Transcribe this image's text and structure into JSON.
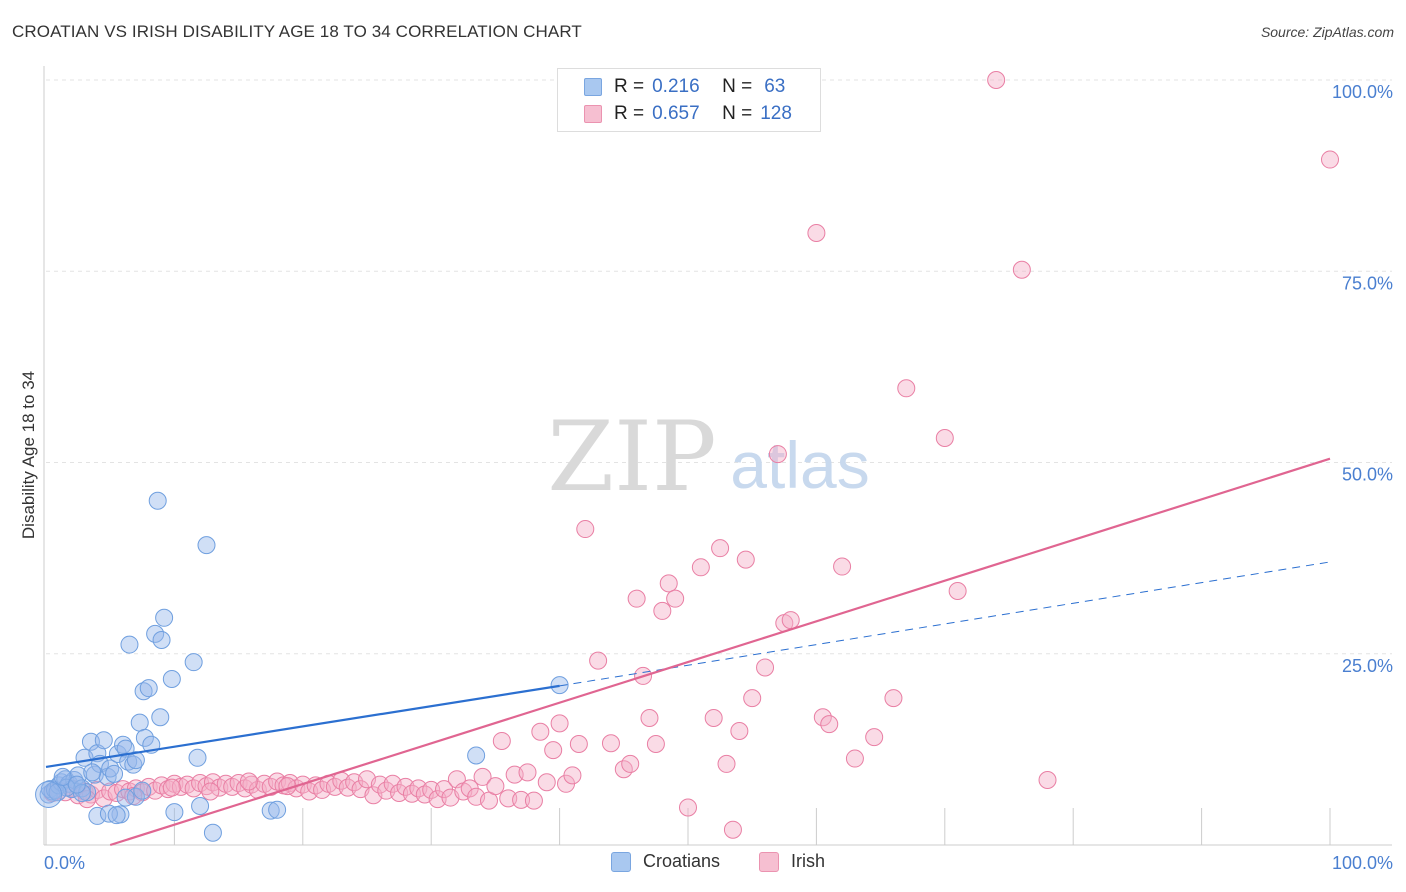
{
  "title": "CROATIAN VS IRISH DISABILITY AGE 18 TO 34 CORRELATION CHART",
  "source": "Source: ZipAtlas.com",
  "watermark": {
    "zip": "ZIP",
    "atlas": "atlas"
  },
  "legend_top": [
    {
      "r_label": "R =",
      "r_value": "0.216",
      "n_label": "N =",
      "n_value": "63",
      "color": "#a9c8f0",
      "border": "#7aa6e0"
    },
    {
      "r_label": "R =",
      "r_value": "0.657",
      "n_label": "N =",
      "n_value": "128",
      "color": "#f6bfd1",
      "border": "#eb93b0"
    }
  ],
  "legend_bottom": [
    {
      "label": "Croatians",
      "color": "#a9c8f0",
      "border": "#7aa6e0"
    },
    {
      "label": "Irish",
      "color": "#f6bfd1",
      "border": "#eb93b0"
    }
  ],
  "chart_data": {
    "type": "scatter",
    "title": "CROATIAN VS IRISH DISABILITY AGE 18 TO 34 CORRELATION CHART",
    "xlabel": "",
    "ylabel": "Disability Age 18 to 34",
    "xlim": [
      0,
      100
    ],
    "ylim": [
      0,
      100
    ],
    "x_tick_labels": [
      {
        "value": 0,
        "label": "0.0%"
      },
      {
        "value": 100,
        "label": "100.0%"
      }
    ],
    "y_tick_labels": [
      {
        "value": 25,
        "label": "25.0%"
      },
      {
        "value": 50,
        "label": "50.0%"
      },
      {
        "value": 75,
        "label": "75.0%"
      },
      {
        "value": 100,
        "label": "100.0%"
      }
    ],
    "grid": true,
    "legend_position": "top-center",
    "series": [
      {
        "name": "Croatians",
        "color": "#6f9fdf",
        "fill": "rgba(150,185,235,0.45)",
        "trend": {
          "x0": 0,
          "y0": 10.2,
          "x1": 40,
          "y1": 20.8,
          "dash_to_x": 100,
          "dash_to_y": 37.0,
          "color": "#2b6fd0"
        },
        "points": [
          [
            0.2,
            6.6
          ],
          [
            0.3,
            7.3
          ],
          [
            0.5,
            7.0
          ],
          [
            0.7,
            7.2
          ],
          [
            1.0,
            7.8
          ],
          [
            1.2,
            8.2
          ],
          [
            1.5,
            8.6
          ],
          [
            1.8,
            8.0
          ],
          [
            2.0,
            7.3
          ],
          [
            2.2,
            8.5
          ],
          [
            2.5,
            9.1
          ],
          [
            2.8,
            7.4
          ],
          [
            3.0,
            11.4
          ],
          [
            3.2,
            6.9
          ],
          [
            3.5,
            13.5
          ],
          [
            3.8,
            9.2
          ],
          [
            4.0,
            12.0
          ],
          [
            4.2,
            10.6
          ],
          [
            4.5,
            13.7
          ],
          [
            4.8,
            8.9
          ],
          [
            5.0,
            10.0
          ],
          [
            5.3,
            9.3
          ],
          [
            5.6,
            11.9
          ],
          [
            6.0,
            13.1
          ],
          [
            6.2,
            12.6
          ],
          [
            6.4,
            10.9
          ],
          [
            6.8,
            10.5
          ],
          [
            7.0,
            11.1
          ],
          [
            7.3,
            16.0
          ],
          [
            7.0,
            6.3
          ],
          [
            6.5,
            26.2
          ],
          [
            7.7,
            14.0
          ],
          [
            7.5,
            7.1
          ],
          [
            8.2,
            13.1
          ],
          [
            7.6,
            20.1
          ],
          [
            8.0,
            20.5
          ],
          [
            8.5,
            27.6
          ],
          [
            8.7,
            45.0
          ],
          [
            8.9,
            16.7
          ],
          [
            9.0,
            26.8
          ],
          [
            9.2,
            29.7
          ],
          [
            9.8,
            21.7
          ],
          [
            11.5,
            23.9
          ],
          [
            11.8,
            11.4
          ],
          [
            12.0,
            5.1
          ],
          [
            12.5,
            39.2
          ],
          [
            13.0,
            1.6
          ],
          [
            17.5,
            4.5
          ],
          [
            18.0,
            4.6
          ],
          [
            40.0,
            20.9
          ],
          [
            33.5,
            11.7
          ],
          [
            4.0,
            3.8
          ],
          [
            5.8,
            4.0
          ],
          [
            6.2,
            6.2
          ],
          [
            10.0,
            4.3
          ],
          [
            2.8,
            6.8
          ],
          [
            1.6,
            7.5
          ],
          [
            0.9,
            6.9
          ],
          [
            1.3,
            8.9
          ],
          [
            2.4,
            7.9
          ],
          [
            3.6,
            9.5
          ],
          [
            4.9,
            4.1
          ],
          [
            5.5,
            3.9
          ]
        ]
      },
      {
        "name": "Irish",
        "color": "#e97fa4",
        "fill": "rgba(245,175,200,0.45)",
        "trend": {
          "x0": 5,
          "y0": 0,
          "x1": 100,
          "y1": 50.5,
          "color": "#e06591"
        },
        "points": [
          [
            0.5,
            6.8
          ],
          [
            1.0,
            7.1
          ],
          [
            1.5,
            6.9
          ],
          [
            2.0,
            7.4
          ],
          [
            2.5,
            6.5
          ],
          [
            3.0,
            7.0
          ],
          [
            3.5,
            6.6
          ],
          [
            4.0,
            7.2
          ],
          [
            4.5,
            6.1
          ],
          [
            5.0,
            7.0
          ],
          [
            5.5,
            6.8
          ],
          [
            6.0,
            7.3
          ],
          [
            6.5,
            7.0
          ],
          [
            7.0,
            7.4
          ],
          [
            7.5,
            6.9
          ],
          [
            8.0,
            7.6
          ],
          [
            8.5,
            7.1
          ],
          [
            9.0,
            7.8
          ],
          [
            9.5,
            7.3
          ],
          [
            10.0,
            8.0
          ],
          [
            10.5,
            7.6
          ],
          [
            11.0,
            7.9
          ],
          [
            11.5,
            7.4
          ],
          [
            12.0,
            8.1
          ],
          [
            12.5,
            7.7
          ],
          [
            13.0,
            8.2
          ],
          [
            13.5,
            7.5
          ],
          [
            14.0,
            8.0
          ],
          [
            14.5,
            7.6
          ],
          [
            15.0,
            8.1
          ],
          [
            15.5,
            7.4
          ],
          [
            16.0,
            7.9
          ],
          [
            16.5,
            7.2
          ],
          [
            17.0,
            8.0
          ],
          [
            17.5,
            7.6
          ],
          [
            18.0,
            8.3
          ],
          [
            18.5,
            7.8
          ],
          [
            19.0,
            8.1
          ],
          [
            19.5,
            7.4
          ],
          [
            20.0,
            7.9
          ],
          [
            20.5,
            7.0
          ],
          [
            21.0,
            7.8
          ],
          [
            21.5,
            7.2
          ],
          [
            22.0,
            8.0
          ],
          [
            22.5,
            7.6
          ],
          [
            23.0,
            8.4
          ],
          [
            23.5,
            7.5
          ],
          [
            24.0,
            8.2
          ],
          [
            24.5,
            7.3
          ],
          [
            25.0,
            8.6
          ],
          [
            25.5,
            6.5
          ],
          [
            26.0,
            7.9
          ],
          [
            26.5,
            7.1
          ],
          [
            27.0,
            8.0
          ],
          [
            27.5,
            6.8
          ],
          [
            28.0,
            7.6
          ],
          [
            28.5,
            6.7
          ],
          [
            29.0,
            7.4
          ],
          [
            29.5,
            6.6
          ],
          [
            30.0,
            7.2
          ],
          [
            30.5,
            6.0
          ],
          [
            31.0,
            7.3
          ],
          [
            31.5,
            6.2
          ],
          [
            32.0,
            8.6
          ],
          [
            32.5,
            7.0
          ],
          [
            33.0,
            7.4
          ],
          [
            33.5,
            6.3
          ],
          [
            34.0,
            8.9
          ],
          [
            34.5,
            5.8
          ],
          [
            35.0,
            7.7
          ],
          [
            35.5,
            13.6
          ],
          [
            36.0,
            6.1
          ],
          [
            36.5,
            9.2
          ],
          [
            37.0,
            5.9
          ],
          [
            37.5,
            9.5
          ],
          [
            38.0,
            5.8
          ],
          [
            38.5,
            14.8
          ],
          [
            39.0,
            8.2
          ],
          [
            39.5,
            12.4
          ],
          [
            40.0,
            15.9
          ],
          [
            40.5,
            8.0
          ],
          [
            41.0,
            9.1
          ],
          [
            41.5,
            13.2
          ],
          [
            42.0,
            41.3
          ],
          [
            43.0,
            24.1
          ],
          [
            44.0,
            13.3
          ],
          [
            45.0,
            9.9
          ],
          [
            45.5,
            10.6
          ],
          [
            46.0,
            32.2
          ],
          [
            46.5,
            22.1
          ],
          [
            47.0,
            16.6
          ],
          [
            47.5,
            13.2
          ],
          [
            48.0,
            30.6
          ],
          [
            48.5,
            34.2
          ],
          [
            49.0,
            32.2
          ],
          [
            50.0,
            4.9
          ],
          [
            51.0,
            36.3
          ],
          [
            52.0,
            16.6
          ],
          [
            52.5,
            38.8
          ],
          [
            53.0,
            10.6
          ],
          [
            53.5,
            2.0
          ],
          [
            54.0,
            14.9
          ],
          [
            54.5,
            37.3
          ],
          [
            55.0,
            19.2
          ],
          [
            56.0,
            23.2
          ],
          [
            57.0,
            51.1
          ],
          [
            57.5,
            29.0
          ],
          [
            58.0,
            29.4
          ],
          [
            60.0,
            80.0
          ],
          [
            60.5,
            16.7
          ],
          [
            61.0,
            15.8
          ],
          [
            62.0,
            36.4
          ],
          [
            63.0,
            11.3
          ],
          [
            64.5,
            14.1
          ],
          [
            66.0,
            19.2
          ],
          [
            67.0,
            59.7
          ],
          [
            70.0,
            53.2
          ],
          [
            71.0,
            33.2
          ],
          [
            74.0,
            100.0
          ],
          [
            76.0,
            75.2
          ],
          [
            78.0,
            8.5
          ],
          [
            100.0,
            89.6
          ],
          [
            3.2,
            6.0
          ],
          [
            6.8,
            6.4
          ],
          [
            9.8,
            7.5
          ],
          [
            12.8,
            7.0
          ],
          [
            15.8,
            8.3
          ],
          [
            18.8,
            7.7
          ]
        ]
      }
    ]
  }
}
